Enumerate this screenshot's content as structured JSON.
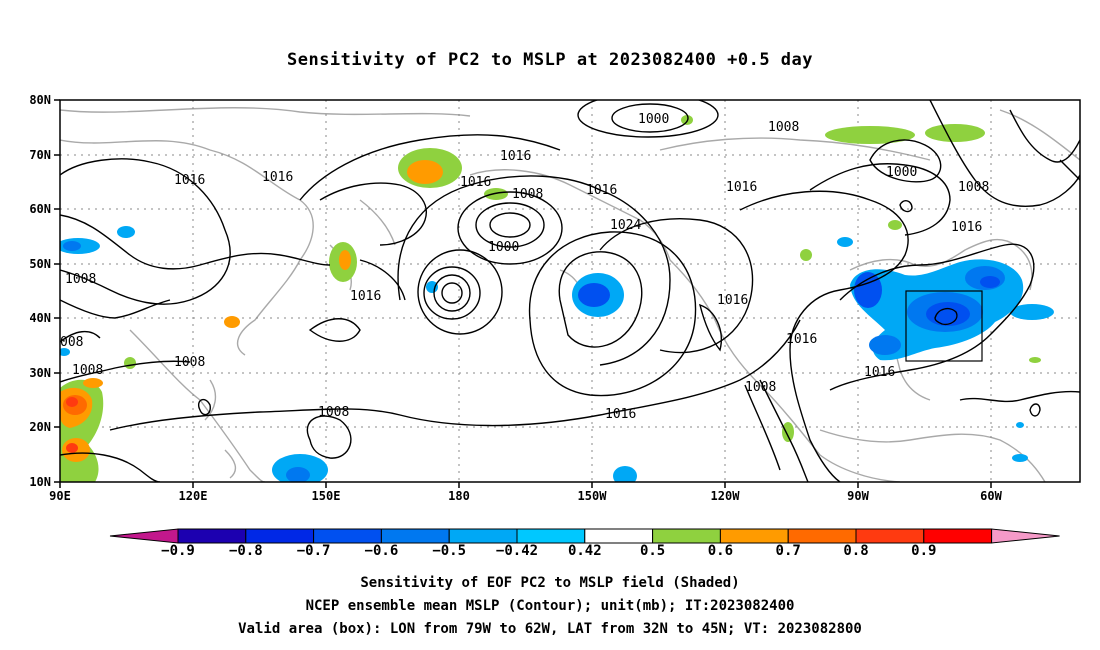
{
  "title": "Sensitivity of PC2 to MSLP at 2023082400 +0.5 day",
  "map": {
    "lon_labels": [
      "90E",
      "120E",
      "150E",
      "180",
      "150W",
      "120W",
      "90W",
      "60W"
    ],
    "lat_labels": [
      "80N",
      "70N",
      "60N",
      "50N",
      "40N",
      "30N",
      "20N",
      "10N"
    ],
    "contour_labels": [
      "1000",
      "1008",
      "1016",
      "1016",
      "1016",
      "1008",
      "1000",
      "1016",
      "1024",
      "1016",
      "1016",
      "1016",
      "1016",
      "1008",
      "1008",
      "1008",
      "1000",
      "1008",
      "1016",
      "008",
      "1008",
      "1016"
    ],
    "valid_box": {
      "lon_from": "79W",
      "lon_to": "62W",
      "lat_from": "32N",
      "lat_to": "45N"
    }
  },
  "colorbar": {
    "labels": [
      "-0.9",
      "-0.8",
      "-0.7",
      "-0.6",
      "-0.5",
      "-0.42",
      "0.42",
      "0.5",
      "0.6",
      "0.7",
      "0.8",
      "0.9"
    ],
    "colors": [
      "#1c00b0",
      "#0028e6",
      "#0050f0",
      "#0078f0",
      "#00a8f5",
      "#00c8ff",
      "#ffffff",
      "#8fd13f",
      "#ff9b00",
      "#ff6a00",
      "#ff3a10",
      "#ff0000"
    ],
    "end_low_color": "#c2188c",
    "end_high_color": "#f59ac8"
  },
  "captions": [
    "Sensitivity of EOF PC2 to MSLP field (Shaded)",
    "NCEP ensemble mean MSLP (Contour); unit(mb); IT:2023082400",
    "Valid area (box): LON from 79W to 62W, LAT from 32N to 45N; VT: 2023082800"
  ]
}
